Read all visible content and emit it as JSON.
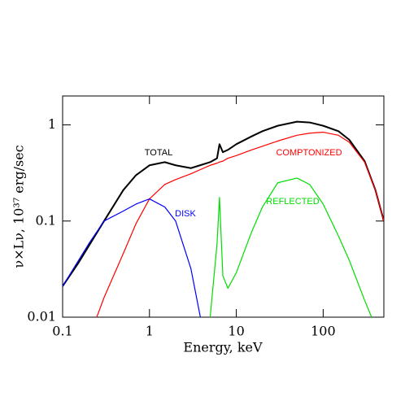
{
  "chart_data": {
    "type": "line",
    "xlabel": "Energy, keV",
    "ylabel": "ν×Lν, 10³⁷ erg/sec",
    "xscale": "log",
    "yscale": "log",
    "xlim": [
      0.1,
      500
    ],
    "ylim": [
      0.01,
      2
    ],
    "xticks": [
      0.1,
      1,
      10,
      100
    ],
    "yticks": [
      0.01,
      0.1,
      1
    ],
    "x": [
      0.1,
      0.15,
      0.2,
      0.3,
      0.5,
      0.7,
      1,
      1.5,
      2,
      3,
      5,
      6,
      6.4,
      7,
      8,
      10,
      15,
      20,
      30,
      50,
      70,
      100,
      150,
      200,
      300,
      400,
      500
    ],
    "series": [
      {
        "name": "TOTAL",
        "color": "#000000",
        "values": [
          0.021,
          0.036,
          0.055,
          0.1,
          0.21,
          0.3,
          0.38,
          0.41,
          0.38,
          0.355,
          0.41,
          0.45,
          0.63,
          0.52,
          0.55,
          0.63,
          0.76,
          0.86,
          0.98,
          1.08,
          1.06,
          0.98,
          0.86,
          0.7,
          0.42,
          0.21,
          0.1
        ]
      },
      {
        "name": "COMPTONIZED",
        "color": "#ff0000",
        "values": [
          null,
          null,
          0.006,
          0.016,
          0.046,
          0.094,
          0.17,
          0.24,
          0.27,
          0.31,
          0.38,
          0.4,
          0.41,
          0.42,
          0.45,
          0.48,
          0.55,
          0.6,
          0.68,
          0.78,
          0.82,
          0.84,
          0.78,
          0.66,
          0.41,
          0.21,
          0.1
        ]
      },
      {
        "name": "DISK",
        "color": "#0000ff",
        "values": [
          0.021,
          0.038,
          0.058,
          0.1,
          0.127,
          0.15,
          0.17,
          0.14,
          0.1,
          0.032,
          0.003,
          null,
          null,
          null,
          null,
          null,
          null,
          null,
          null,
          null,
          null,
          null,
          null,
          null,
          null,
          null,
          null
        ]
      },
      {
        "name": "REFLECTED",
        "color": "#00dd00",
        "values": [
          null,
          null,
          null,
          null,
          null,
          null,
          null,
          null,
          null,
          null,
          0.01,
          0.058,
          0.176,
          0.027,
          0.02,
          0.029,
          0.077,
          0.14,
          0.25,
          0.28,
          0.24,
          0.15,
          0.07,
          0.039,
          0.015,
          0.008,
          null
        ]
      }
    ]
  }
}
